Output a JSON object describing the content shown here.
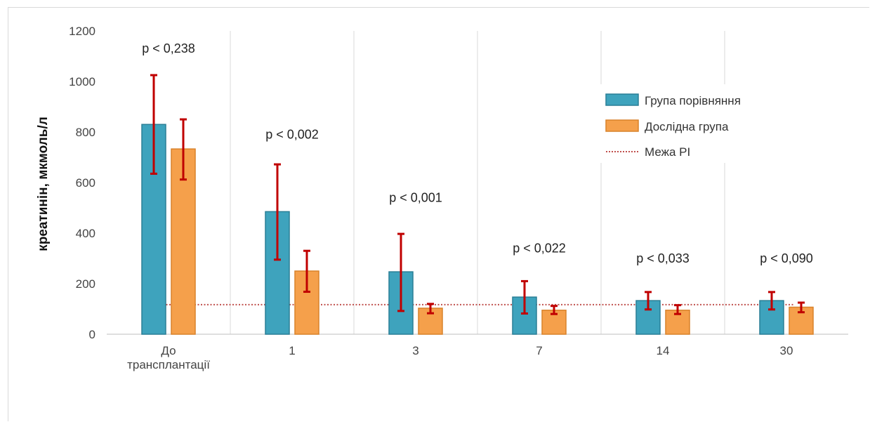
{
  "chart_data": {
    "type": "bar",
    "categories": [
      [
        "До",
        "трансплантації"
      ],
      "1",
      "3",
      "7",
      "14",
      "30"
    ],
    "series": [
      {
        "name": "Група порівняння",
        "color": "#3ea3bd",
        "values": [
          830,
          485,
          247,
          147,
          133,
          133
        ],
        "err_low": [
          635,
          295,
          92,
          82,
          98,
          98
        ],
        "err_high": [
          1025,
          672,
          397,
          210,
          167,
          167
        ]
      },
      {
        "name": "Дослідна група",
        "color": "#f5a04b",
        "values": [
          733,
          250,
          103,
          95,
          95,
          107
        ],
        "err_low": [
          612,
          168,
          83,
          80,
          80,
          87
        ],
        "err_high": [
          850,
          330,
          120,
          112,
          115,
          125
        ]
      }
    ],
    "reference_line": {
      "name": "Межа РІ",
      "value": 117,
      "color": "#c0504d"
    },
    "p_values": [
      "p < 0,238",
      "p < 0,002",
      "p < 0,001",
      "p < 0,022",
      "p < 0,033",
      "p < 0,090"
    ],
    "p_value_heights": [
      1130,
      790,
      540,
      340,
      300,
      300
    ],
    "ylabel": "креатинін, мкмоль/л",
    "ylim": [
      0,
      1200
    ],
    "yticks": [
      0,
      200,
      400,
      600,
      800,
      1000,
      1200
    ],
    "error_bar_color": "#c00000",
    "grid": "vertical separators between categories",
    "legend_position": "top-right"
  }
}
